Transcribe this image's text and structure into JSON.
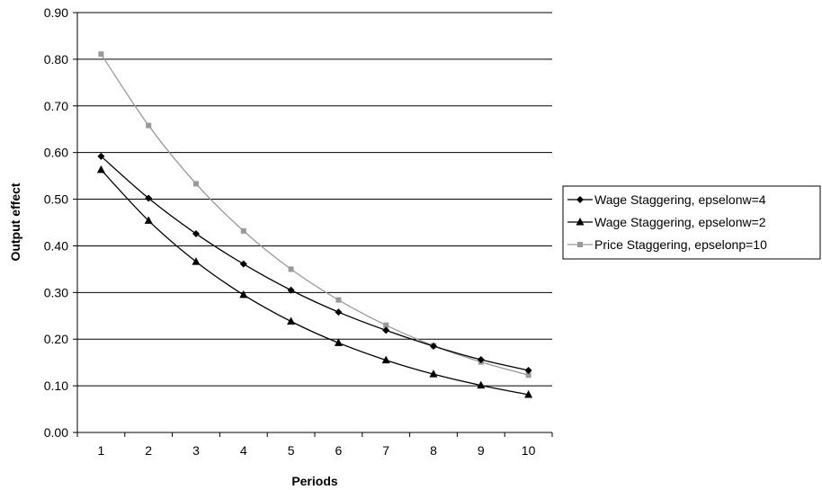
{
  "chart_data": {
    "type": "line",
    "title": "",
    "xlabel": "Periods",
    "ylabel": "Output effect",
    "x": [
      1,
      2,
      3,
      4,
      5,
      6,
      7,
      8,
      9,
      10
    ],
    "ylim": [
      0,
      0.9
    ],
    "ytick_step": 0.1,
    "yticks": [
      "0.00",
      "0.10",
      "0.20",
      "0.30",
      "0.40",
      "0.50",
      "0.60",
      "0.70",
      "0.80",
      "0.90"
    ],
    "xticks": [
      "1",
      "2",
      "3",
      "4",
      "5",
      "6",
      "7",
      "8",
      "9",
      "10"
    ],
    "grid": "horizontal",
    "legend_position": "right",
    "series": [
      {
        "name": "Wage Staggering, epselonw=4",
        "marker": "diamond",
        "color": "#000000",
        "values": [
          0.592,
          0.502,
          0.426,
          0.361,
          0.305,
          0.258,
          0.219,
          0.185,
          0.156,
          0.133
        ]
      },
      {
        "name": "Wage Staggering, epselonw=2",
        "marker": "triangle",
        "color": "#000000",
        "values": [
          0.563,
          0.454,
          0.366,
          0.295,
          0.238,
          0.192,
          0.155,
          0.125,
          0.101,
          0.081
        ]
      },
      {
        "name": "Price Staggering, epselonp=10",
        "marker": "square",
        "color": "#999999",
        "values": [
          0.811,
          0.658,
          0.533,
          0.432,
          0.35,
          0.284,
          0.23,
          0.186,
          0.151,
          0.123
        ]
      }
    ]
  }
}
